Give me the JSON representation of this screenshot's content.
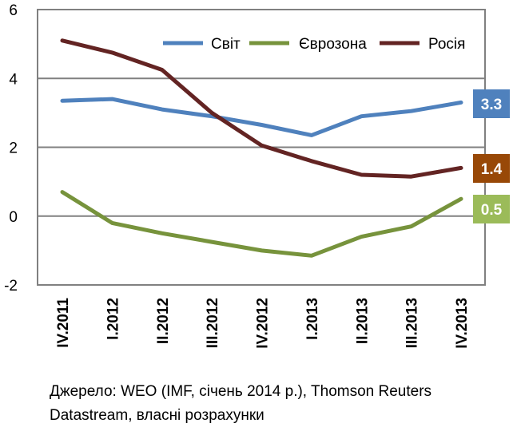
{
  "chart_data": {
    "type": "line",
    "categories": [
      "IV.2011",
      "I.2012",
      "II.2012",
      "III.2012",
      "IV.2012",
      "I.2013",
      "II.2013",
      "III.2013",
      "IV.2013"
    ],
    "series": [
      {
        "name": "Світ",
        "color": "#4F81BD",
        "values": [
          3.35,
          3.4,
          3.1,
          2.9,
          2.65,
          2.35,
          2.9,
          3.05,
          3.3
        ],
        "end_label": "3.3"
      },
      {
        "name": "Єврозона",
        "color": "#77933C",
        "values": [
          0.7,
          -0.2,
          -0.5,
          -0.75,
          -1.0,
          -1.15,
          -0.6,
          -0.3,
          0.5
        ],
        "end_label": "0.5"
      },
      {
        "name": "Росія",
        "color": "#632423",
        "values": [
          5.1,
          4.75,
          4.25,
          3.0,
          2.05,
          1.6,
          1.2,
          1.15,
          1.4
        ],
        "end_label": "1.4"
      }
    ],
    "end_label_colors": {
      "Світ": "#4F81BD",
      "Єврозона": "#9BBB59",
      "Росія": "#984807"
    },
    "ylim": [
      -2,
      6
    ],
    "yticks": [
      "-2",
      "0",
      "2",
      "4",
      "6"
    ],
    "grid": true,
    "legend_position": "top-right"
  },
  "source_note": {
    "line1": "Джерело: WEO (IMF, січень 2014 р.), Thomson Reuters",
    "line2": "Datastream, власні розрахунки"
  }
}
